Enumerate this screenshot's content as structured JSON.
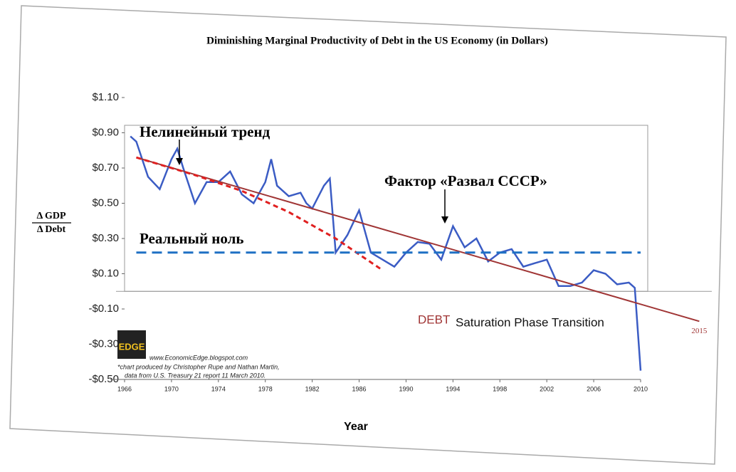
{
  "chart_data": {
    "type": "line",
    "title": "Diminishing Marginal Productivity of Debt in the US Economy  (in Dollars)",
    "y_label_top": "Δ GDP",
    "y_label_bottom": "Δ Debt",
    "x_label": "Year",
    "xlim": [
      1966,
      2010
    ],
    "xticks": [
      1966,
      1970,
      1974,
      1978,
      1982,
      1986,
      1990,
      1994,
      1998,
      2002,
      2006,
      2010
    ],
    "ylim": [
      -0.5,
      1.1
    ],
    "yticks": [
      {
        "value": 1.1,
        "label": "$1.10"
      },
      {
        "value": 0.9,
        "label": "$0.90"
      },
      {
        "value": 0.7,
        "label": "$0.70"
      },
      {
        "value": 0.5,
        "label": "$0.50"
      },
      {
        "value": 0.3,
        "label": "$0.30"
      },
      {
        "value": 0.1,
        "label": "$0.10"
      },
      {
        "value": -0.1,
        "label": "-$0.10"
      },
      {
        "value": -0.3,
        "label": "-$0.30"
      },
      {
        "value": -0.5,
        "label": "-$0.50"
      }
    ],
    "series": [
      {
        "color": "#3b5cc4",
        "x": [
          1966.5,
          1967,
          1968,
          1969,
          1970,
          1970.5,
          1971,
          1972,
          1973,
          1974,
          1975,
          1976,
          1977,
          1978,
          1978.5,
          1979,
          1980,
          1981,
          1981.5,
          1982,
          1983,
          1983.5,
          1984,
          1985,
          1986,
          1987,
          1988,
          1989,
          1990,
          1991,
          1992,
          1993,
          1994,
          1995,
          1996,
          1997,
          1998,
          1999,
          2000,
          2001,
          2002,
          2003,
          2004,
          2005,
          2006,
          2007,
          2008,
          2009,
          2009.5,
          2010
        ],
        "values": [
          0.88,
          0.85,
          0.65,
          0.58,
          0.75,
          0.81,
          0.7,
          0.5,
          0.62,
          0.62,
          0.68,
          0.55,
          0.5,
          0.62,
          0.75,
          0.6,
          0.54,
          0.56,
          0.5,
          0.47,
          0.6,
          0.64,
          0.22,
          0.32,
          0.46,
          0.22,
          0.18,
          0.14,
          0.22,
          0.28,
          0.27,
          0.18,
          0.37,
          0.25,
          0.3,
          0.17,
          0.22,
          0.24,
          0.14,
          0.16,
          0.18,
          0.03,
          0.03,
          0.05,
          0.12,
          0.1,
          0.04,
          0.05,
          0.02,
          -0.45
        ]
      },
      {
        "color": "#a03535",
        "x": [
          1967,
          2015
        ],
        "values": [
          0.76,
          -0.17
        ]
      },
      {
        "color": "#e02020",
        "dashed": true,
        "x": [
          1967,
          1972,
          1976,
          1980,
          1984,
          1988
        ],
        "values": [
          0.76,
          0.66,
          0.57,
          0.45,
          0.3,
          0.12
        ]
      },
      {
        "color": "#1f70c4",
        "dashed": true,
        "x": [
          1967,
          2010
        ],
        "values": [
          0.22,
          0.22
        ]
      }
    ],
    "annotations": [
      "Нелинейный тренд",
      "Фактор «Развал СССР»",
      "Реальный ноль",
      "DEBT",
      "Saturation Phase Transition",
      "EDGE",
      "www.EconomicEdge.blogspot.com",
      "*chart produced by Christopher Rupe and Nathan Martin,",
      "data from U.S. Treasury 21 report 11 March 2010."
    ]
  }
}
